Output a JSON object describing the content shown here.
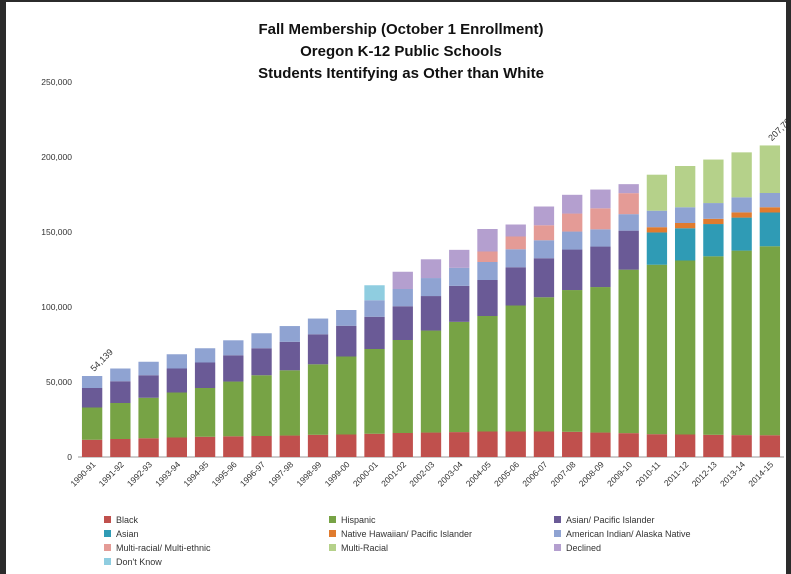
{
  "chart_data": {
    "type": "bar",
    "stacked": true,
    "title": [
      "Fall Membership (October 1 Enrollment)",
      "Oregon K-12 Public Schools",
      "Students Itentifying as Other than White"
    ],
    "xlabel": "",
    "ylabel": "",
    "ylim": [
      0,
      250000
    ],
    "yticks": [
      "0",
      "50,000",
      "100,000",
      "150,000",
      "200,000",
      "250,000"
    ],
    "ytick_values": [
      0,
      50000,
      100000,
      150000,
      200000,
      250000
    ],
    "grid": false,
    "legend_position": "bottom",
    "categories": [
      "1990-91",
      "1991-92",
      "1992-93",
      "1993-94",
      "1994-95",
      "1995-96",
      "1996-97",
      "1997-98",
      "1998-99",
      "1999-00",
      "2000-01",
      "2001-02",
      "2002-03",
      "2003-04",
      "2004-05",
      "2005-06",
      "2006-07",
      "2007-08",
      "2008-09",
      "2009-10",
      "2010-11",
      "2011-12",
      "2012-13",
      "2013-14",
      "2014-15"
    ],
    "series": [
      {
        "name": "Black",
        "color": "#c0504d",
        "values": [
          11500,
          12000,
          12500,
          13000,
          13500,
          13800,
          14000,
          14300,
          14800,
          15000,
          15500,
          16000,
          16300,
          16600,
          17000,
          17000,
          17000,
          16800,
          16300,
          15900,
          15200,
          15000,
          14800,
          14600,
          14500
        ]
      },
      {
        "name": "Hispanic",
        "color": "#77a345",
        "values": [
          21500,
          24000,
          27000,
          30000,
          32500,
          36500,
          40500,
          43500,
          47000,
          52000,
          56500,
          62000,
          68000,
          73500,
          77000,
          84000,
          89500,
          94500,
          97000,
          109000,
          113000,
          116000,
          119000,
          123000,
          126000
        ]
      },
      {
        "name": "Asian/ Pacific Islander",
        "color": "#6a5a96",
        "values": [
          13000,
          14500,
          15000,
          16000,
          17000,
          17500,
          18000,
          19000,
          20000,
          20500,
          21500,
          22500,
          23000,
          24000,
          24000,
          25500,
          26000,
          27000,
          27000,
          26000,
          0,
          0,
          0,
          0,
          0
        ]
      },
      {
        "name": "Asian",
        "color": "#2f9bb5",
        "values": [
          0,
          0,
          0,
          0,
          0,
          0,
          0,
          0,
          0,
          0,
          0,
          0,
          0,
          0,
          0,
          0,
          0,
          0,
          0,
          0,
          21500,
          21500,
          21500,
          22000,
          22500
        ]
      },
      {
        "name": "Native Hawaiian/ Pacific Islander",
        "color": "#e07b2e",
        "values": [
          0,
          0,
          0,
          0,
          0,
          0,
          0,
          0,
          0,
          0,
          0,
          0,
          0,
          0,
          0,
          0,
          0,
          0,
          0,
          0,
          3500,
          3500,
          3500,
          3500,
          3500
        ]
      },
      {
        "name": "American Indian/ Alaska Native",
        "color": "#8fa3d2",
        "values": [
          8000,
          8500,
          9000,
          9500,
          9500,
          10000,
          10000,
          10500,
          10500,
          10500,
          11000,
          11500,
          12000,
          12000,
          12000,
          12000,
          12000,
          12000,
          11500,
          11000,
          11000,
          10500,
          10500,
          10000,
          9500
        ]
      },
      {
        "name": "Multi-racial/ Multi-ethnic",
        "color": "#e49b96",
        "values": [
          0,
          0,
          0,
          0,
          0,
          0,
          0,
          0,
          0,
          0,
          0,
          0,
          0,
          0,
          7000,
          8500,
          10000,
          12000,
          14000,
          14000,
          0,
          0,
          0,
          0,
          0
        ]
      },
      {
        "name": "Multi-Racial",
        "color": "#b5d18a",
        "values": [
          0,
          0,
          0,
          0,
          0,
          0,
          0,
          0,
          0,
          0,
          0,
          0,
          0,
          0,
          0,
          0,
          0,
          0,
          0,
          0,
          24000,
          27500,
          29000,
          30000,
          31700
        ]
      },
      {
        "name": "Declined",
        "color": "#b49fcf",
        "values": [
          0,
          0,
          0,
          0,
          0,
          0,
          0,
          0,
          0,
          0,
          0,
          11500,
          12500,
          12000,
          15000,
          8000,
          12500,
          12500,
          12500,
          6000,
          0,
          0,
          0,
          0,
          0
        ]
      },
      {
        "name": "Don't Know",
        "color": "#8fcde0",
        "values": [
          0,
          0,
          0,
          0,
          0,
          0,
          0,
          0,
          0,
          0,
          10000,
          0,
          0,
          0,
          0,
          0,
          0,
          0,
          0,
          0,
          0,
          0,
          0,
          0,
          0
        ]
      }
    ],
    "data_labels": [
      {
        "category": "1990-91",
        "text": "54,139"
      },
      {
        "category": "2014-15",
        "text": "207,702"
      }
    ]
  }
}
